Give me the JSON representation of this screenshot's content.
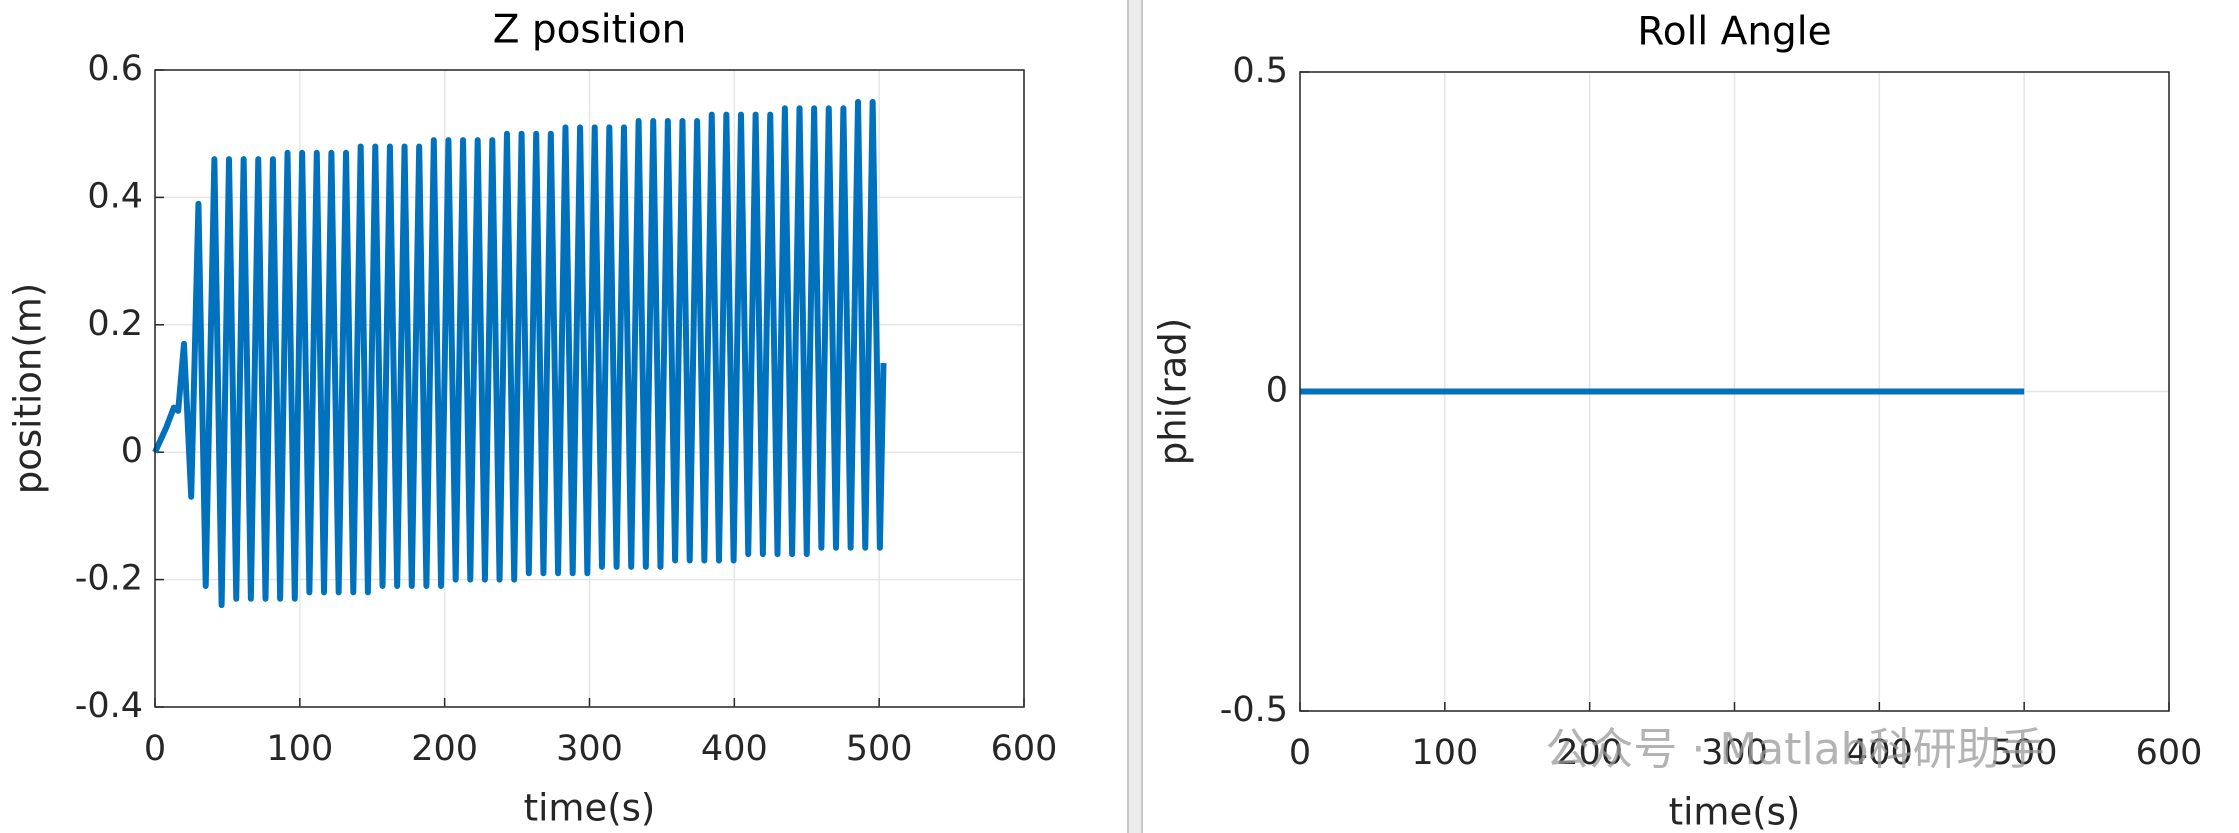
{
  "chart_data": [
    {
      "type": "line",
      "title": "Z position",
      "xlabel": "time(s)",
      "ylabel": "position(m)",
      "color": "#0072BD",
      "grid": true,
      "xlim": [
        0,
        600
      ],
      "xticks": [
        0,
        100,
        200,
        300,
        400,
        500,
        600
      ],
      "ylim": [
        -0.4,
        0.6
      ],
      "yticks": [
        -0.4,
        -0.2,
        0,
        0.2,
        0.4,
        0.6
      ],
      "x": [
        0,
        8,
        13,
        16,
        20,
        25,
        30,
        35,
        41,
        46,
        51.1,
        56.1,
        61.2,
        66.2,
        71.3,
        76.3,
        81.4,
        86.4,
        91.5,
        96.5,
        101.6,
        106.6,
        111.7,
        116.7,
        121.8,
        126.8,
        131.9,
        136.9,
        142,
        147,
        152.1,
        157.1,
        162.2,
        167.2,
        172.3,
        177.3,
        182.4,
        187.4,
        192.5,
        197.5,
        202.6,
        207.6,
        212.7,
        217.7,
        222.8,
        227.8,
        232.9,
        237.9,
        243,
        248,
        253.1,
        258.1,
        263.2,
        268.2,
        273.3,
        278.3,
        283.4,
        288.4,
        293.5,
        298.5,
        303.6,
        308.6,
        313.7,
        318.7,
        323.8,
        328.8,
        333.9,
        338.9,
        344,
        349,
        354.1,
        359.1,
        364.2,
        369.2,
        374.3,
        379.3,
        384.4,
        389.4,
        394.5,
        399.5,
        404.6,
        409.6,
        414.7,
        419.7,
        424.8,
        429.8,
        434.9,
        439.9,
        445,
        450,
        455.1,
        460.1,
        465.2,
        470.2,
        475.3,
        480.3,
        485.4,
        490.4,
        495.5,
        500.5,
        503
      ],
      "values": [
        0,
        0.04,
        0.07,
        0.065,
        0.17,
        -0.07,
        0.39,
        -0.21,
        0.46,
        -0.24,
        0.46,
        -0.23,
        0.46,
        -0.23,
        0.46,
        -0.23,
        0.46,
        -0.23,
        0.47,
        -0.23,
        0.47,
        -0.22,
        0.47,
        -0.22,
        0.47,
        -0.22,
        0.47,
        -0.22,
        0.48,
        -0.22,
        0.48,
        -0.21,
        0.48,
        -0.21,
        0.48,
        -0.21,
        0.48,
        -0.21,
        0.49,
        -0.21,
        0.49,
        -0.2,
        0.49,
        -0.2,
        0.49,
        -0.2,
        0.49,
        -0.2,
        0.5,
        -0.2,
        0.5,
        -0.19,
        0.5,
        -0.19,
        0.5,
        -0.19,
        0.51,
        -0.19,
        0.51,
        -0.19,
        0.51,
        -0.18,
        0.51,
        -0.18,
        0.51,
        -0.18,
        0.52,
        -0.18,
        0.52,
        -0.18,
        0.52,
        -0.17,
        0.52,
        -0.17,
        0.52,
        -0.17,
        0.53,
        -0.17,
        0.53,
        -0.17,
        0.53,
        -0.16,
        0.53,
        -0.16,
        0.53,
        -0.16,
        0.54,
        -0.16,
        0.54,
        -0.16,
        0.54,
        -0.15,
        0.54,
        -0.15,
        0.54,
        -0.15,
        0.55,
        -0.15,
        0.55,
        -0.15,
        0.14
      ]
    },
    {
      "type": "line",
      "title": "Roll Angle",
      "xlabel": "time(s)",
      "ylabel": "phi(rad)",
      "color": "#0072BD",
      "grid": true,
      "xlim": [
        0,
        600
      ],
      "xticks": [
        0,
        100,
        200,
        300,
        400,
        500,
        600
      ],
      "ylim": [
        -0.5,
        0.5
      ],
      "yticks": [
        -0.5,
        0,
        0.5
      ],
      "x": [
        0,
        500
      ],
      "values": [
        0,
        0
      ],
      "watermark": "公众号 · Matlab科研助手"
    }
  ]
}
